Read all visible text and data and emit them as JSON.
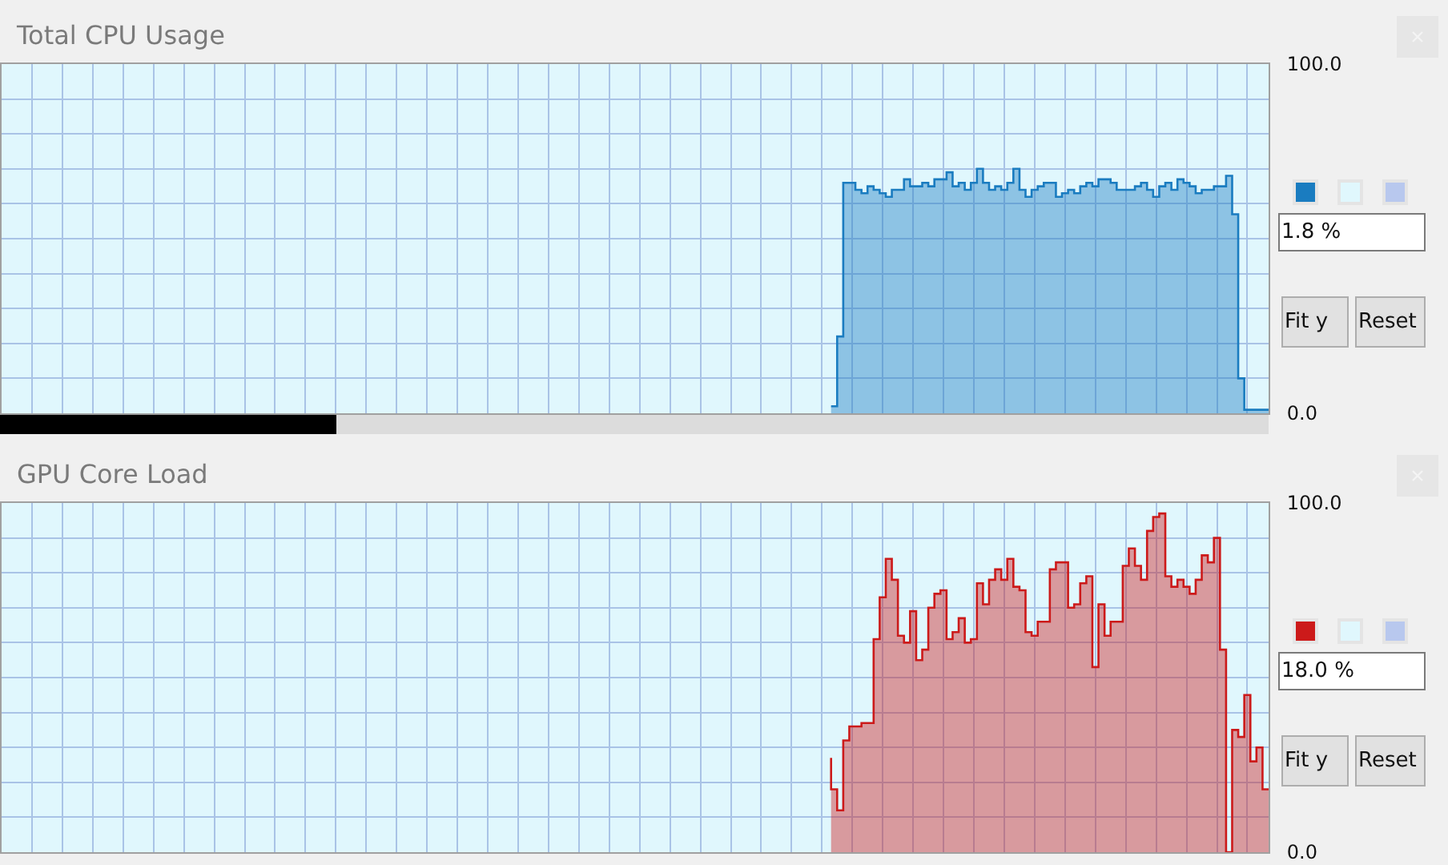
{
  "chart_data": [
    {
      "type": "area",
      "title": "Total CPU Usage",
      "categories": [
        null,
        null,
        null,
        null,
        null,
        null,
        null,
        null,
        null,
        null,
        null,
        null,
        null,
        null,
        null,
        null,
        null,
        null,
        null,
        null,
        null,
        null,
        null,
        null,
        null,
        null,
        null,
        null,
        null,
        null,
        null,
        null,
        null,
        null,
        null,
        null,
        null,
        null,
        null,
        null,
        null,
        null,
        null,
        null,
        null,
        null,
        null,
        null,
        null,
        null,
        null,
        null,
        null,
        null,
        null,
        null,
        null,
        null,
        null,
        null,
        null,
        null,
        null,
        null,
        null,
        null,
        null,
        null,
        null,
        null,
        null,
        null,
        null,
        null,
        null,
        null,
        null,
        null,
        null,
        null,
        null,
        null,
        null,
        null,
        null,
        null,
        null,
        null,
        null,
        null,
        null,
        null,
        null,
        null,
        null,
        null,
        null,
        null,
        null,
        null,
        null,
        null,
        null,
        null,
        null,
        null,
        null,
        null,
        null,
        null,
        null,
        null,
        null,
        null,
        null,
        null,
        null,
        null,
        null,
        null,
        null,
        null,
        null,
        null,
        null,
        null,
        null,
        null,
        null,
        null,
        null,
        null,
        null,
        null,
        null,
        null,
        null,
        null,
        null,
        null,
        null,
        null,
        null,
        null,
        null,
        null,
        null,
        null,
        null,
        null,
        null,
        null,
        null,
        null,
        null,
        null,
        null,
        null,
        null,
        null,
        null,
        null,
        null,
        null,
        null,
        null,
        null,
        null,
        null,
        null,
        null,
        null,
        null,
        null,
        null,
        null,
        null,
        null,
        null,
        null,
        null,
        null,
        null,
        null,
        null,
        null,
        null,
        null,
        null,
        null,
        null,
        null,
        null,
        null,
        null,
        null,
        null,
        null,
        null,
        null,
        null,
        null,
        null,
        null,
        null,
        null,
        null,
        null,
        null
      ],
      "series": [
        {
          "color": "#1a7cc0",
          "values": [
            null,
            null,
            null,
            null,
            null,
            null,
            null,
            null,
            null,
            null,
            null,
            null,
            null,
            null,
            null,
            null,
            null,
            null,
            null,
            null,
            null,
            null,
            null,
            null,
            null,
            null,
            null,
            null,
            null,
            null,
            null,
            null,
            null,
            null,
            null,
            null,
            null,
            null,
            null,
            null,
            null,
            null,
            null,
            null,
            null,
            null,
            null,
            null,
            null,
            null,
            null,
            null,
            null,
            null,
            null,
            null,
            null,
            null,
            null,
            null,
            null,
            null,
            null,
            null,
            null,
            null,
            null,
            null,
            null,
            null,
            null,
            null,
            null,
            null,
            null,
            null,
            null,
            null,
            null,
            null,
            null,
            null,
            null,
            null,
            null,
            null,
            null,
            null,
            null,
            null,
            null,
            null,
            null,
            null,
            null,
            null,
            null,
            null,
            null,
            null,
            null,
            null,
            null,
            null,
            null,
            null,
            null,
            null,
            null,
            null,
            null,
            null,
            null,
            null,
            null,
            null,
            null,
            null,
            null,
            null,
            null,
            null,
            null,
            null,
            null,
            null,
            null,
            null,
            null,
            null,
            null,
            null,
            null,
            null,
            null,
            null,
            2,
            2,
            22,
            66,
            66,
            64,
            63,
            65,
            64,
            63,
            62,
            64,
            64,
            67,
            65,
            65,
            66,
            65,
            67,
            67,
            69,
            65,
            66,
            64,
            66,
            70,
            66,
            64,
            65,
            64,
            66,
            70,
            64,
            62,
            64,
            65,
            66,
            66,
            62,
            63,
            64,
            63,
            65,
            66,
            65,
            67,
            67,
            66,
            64,
            64,
            64,
            65,
            66,
            64,
            62,
            65,
            66,
            64,
            67,
            66,
            65,
            63,
            64,
            64,
            65,
            65,
            68,
            57,
            10,
            1,
            1,
            1,
            1
          ]
        }
      ],
      "ylim": [
        0,
        100
      ],
      "yticks": [
        {
          "value": 0,
          "label": "0.0"
        },
        {
          "value": 10,
          "label": null
        },
        {
          "value": 20,
          "label": null
        },
        {
          "value": 30,
          "label": null
        },
        {
          "value": 40,
          "label": null
        },
        {
          "value": 50,
          "label": null
        },
        {
          "value": 60,
          "label": null
        },
        {
          "value": 70,
          "label": null
        },
        {
          "value": 80,
          "label": null
        },
        {
          "value": 90,
          "label": null
        },
        {
          "value": 100,
          "label": "100.0"
        }
      ],
      "grid": true,
      "legend": false,
      "annotations": [
        "1.8 %",
        "Fit y",
        "Reset"
      ]
    },
    {
      "type": "area",
      "title": "GPU Core Load",
      "categories": [
        null,
        null,
        null,
        null,
        null,
        null,
        null,
        null,
        null,
        null,
        null,
        null,
        null,
        null,
        null,
        null,
        null,
        null,
        null,
        null,
        null,
        null,
        null,
        null,
        null,
        null,
        null,
        null,
        null,
        null,
        null,
        null,
        null,
        null,
        null,
        null,
        null,
        null,
        null,
        null,
        null,
        null,
        null,
        null,
        null,
        null,
        null,
        null,
        null,
        null,
        null,
        null,
        null,
        null,
        null,
        null,
        null,
        null,
        null,
        null,
        null,
        null,
        null,
        null,
        null,
        null,
        null,
        null,
        null,
        null,
        null,
        null,
        null,
        null,
        null,
        null,
        null,
        null,
        null,
        null,
        null,
        null,
        null,
        null,
        null,
        null,
        null,
        null,
        null,
        null,
        null,
        null,
        null,
        null,
        null,
        null,
        null,
        null,
        null,
        null,
        null,
        null,
        null,
        null,
        null,
        null,
        null,
        null,
        null,
        null,
        null,
        null,
        null,
        null,
        null,
        null,
        null,
        null,
        null,
        null,
        null,
        null,
        null,
        null,
        null,
        null,
        null,
        null,
        null,
        null,
        null,
        null,
        null,
        null,
        null,
        null,
        null,
        null,
        null,
        null,
        null,
        null,
        null,
        null,
        null,
        null,
        null,
        null,
        null,
        null,
        null,
        null,
        null,
        null,
        null,
        null,
        null,
        null,
        null,
        null,
        null,
        null,
        null,
        null,
        null,
        null,
        null,
        null,
        null,
        null,
        null,
        null,
        null,
        null,
        null,
        null,
        null,
        null,
        null,
        null,
        null,
        null,
        null,
        null,
        null,
        null,
        null,
        null,
        null,
        null,
        null,
        null,
        null,
        null,
        null,
        null,
        null,
        null,
        null,
        null,
        null,
        null,
        null,
        null,
        null,
        null,
        null,
        null,
        null
      ],
      "series": [
        {
          "color": "#cc1a1a",
          "values": [
            null,
            null,
            null,
            null,
            null,
            null,
            null,
            null,
            null,
            null,
            null,
            null,
            null,
            null,
            null,
            null,
            null,
            null,
            null,
            null,
            null,
            null,
            null,
            null,
            null,
            null,
            null,
            null,
            null,
            null,
            null,
            null,
            null,
            null,
            null,
            null,
            null,
            null,
            null,
            null,
            null,
            null,
            null,
            null,
            null,
            null,
            null,
            null,
            null,
            null,
            null,
            null,
            null,
            null,
            null,
            null,
            null,
            null,
            null,
            null,
            null,
            null,
            null,
            null,
            null,
            null,
            null,
            null,
            null,
            null,
            null,
            null,
            null,
            null,
            null,
            null,
            null,
            null,
            null,
            null,
            null,
            null,
            null,
            null,
            null,
            null,
            null,
            null,
            null,
            null,
            null,
            null,
            null,
            null,
            null,
            null,
            null,
            null,
            null,
            null,
            null,
            null,
            null,
            null,
            null,
            null,
            null,
            null,
            null,
            null,
            null,
            null,
            null,
            null,
            null,
            null,
            null,
            null,
            null,
            null,
            null,
            null,
            null,
            null,
            null,
            null,
            null,
            null,
            null,
            null,
            null,
            null,
            null,
            null,
            null,
            null,
            27,
            18,
            12,
            32,
            36,
            36,
            37,
            37,
            61,
            73,
            84,
            78,
            62,
            60,
            69,
            55,
            58,
            70,
            74,
            75,
            61,
            63,
            67,
            60,
            61,
            77,
            71,
            78,
            81,
            78,
            84,
            76,
            75,
            63,
            62,
            66,
            66,
            81,
            83,
            83,
            70,
            71,
            77,
            79,
            53,
            71,
            62,
            66,
            66,
            82,
            87,
            82,
            78,
            92,
            96,
            97,
            79,
            76,
            78,
            76,
            74,
            78,
            85,
            83,
            90,
            58,
            0,
            35,
            33,
            45,
            26,
            30,
            18
          ]
        }
      ],
      "ylim": [
        0,
        100
      ],
      "yticks": [
        {
          "value": 0,
          "label": "0.0"
        },
        {
          "value": 10,
          "label": null
        },
        {
          "value": 20,
          "label": null
        },
        {
          "value": 30,
          "label": null
        },
        {
          "value": 40,
          "label": null
        },
        {
          "value": 50,
          "label": null
        },
        {
          "value": 60,
          "label": null
        },
        {
          "value": 70,
          "label": null
        },
        {
          "value": 80,
          "label": null
        },
        {
          "value": 90,
          "label": null
        },
        {
          "value": 100,
          "label": "100.0"
        }
      ],
      "grid": true,
      "legend": false,
      "annotations": [
        "18.0 %",
        "Fit y",
        "Reset"
      ]
    }
  ]
}
